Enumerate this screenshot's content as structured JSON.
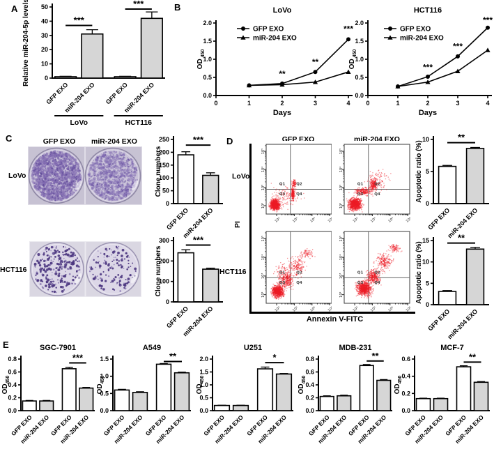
{
  "colors": {
    "bar_white": "#ffffff",
    "bar_gray": "#d6d6d6",
    "axis": "#000000",
    "flow_dots": "#ee1c24",
    "lovo_stain": "#7b64af",
    "hct_stain": "#4b3680"
  },
  "panels": {
    "a": "A",
    "b": "B",
    "c": "C",
    "d": "D",
    "e": "E"
  },
  "panel_c": {
    "col_titles": [
      "GFP EXO",
      "miR-204 EXO"
    ],
    "row_labels": [
      "LoVo",
      "HCT116"
    ]
  },
  "panel_d": {
    "col_titles": [
      "GFP EXO",
      "miR-204 EXO"
    ],
    "row_labels": [
      "LoVo",
      "HCT116"
    ],
    "y_axis_label": "PI",
    "x_axis_label": "Annexin V-FITC"
  },
  "plate_rows": [
    {
      "row": "LoVo",
      "bg": "#c7c2d3",
      "plate_fill": "#cac3d9",
      "rim": "#8e87a4",
      "plates": [
        {
          "condition": "GFP EXO",
          "colony_density": "high",
          "blobs": [
            [
              "#7b64af",
              1300,
              0.6,
              2.3,
              0.42
            ],
            [
              "#5d4897",
              260,
              0.5,
              1.4,
              0.55
            ]
          ]
        },
        {
          "condition": "miR-204 EXO",
          "colony_density": "medium",
          "blobs": [
            [
              "#7b64af",
              780,
              0.6,
              2.2,
              0.4
            ],
            [
              "#5d4897",
              170,
              0.5,
              1.3,
              0.5
            ]
          ]
        }
      ]
    },
    {
      "row": "HCT116",
      "bg": "#dad7e2",
      "plate_fill": "#dcd7e7",
      "rim": "#9992b0",
      "plates": [
        {
          "condition": "GFP EXO",
          "colony_density": "medium",
          "blobs": [
            [
              "#4b3680",
              155,
              0.9,
              2.1,
              0.9
            ],
            [
              "#7a68a8",
              70,
              0.7,
              1.5,
              0.7
            ]
          ]
        },
        {
          "condition": "miR-204 EXO",
          "colony_density": "low",
          "blobs": [
            [
              "#4b3680",
              95,
              0.9,
              2.0,
              0.9
            ],
            [
              "#7a68a8",
              45,
              0.7,
              1.4,
              0.7
            ]
          ]
        }
      ]
    }
  ],
  "chart_data": [
    {
      "id": "panel-a",
      "type": "bar",
      "ylabel": "Relative  miR-204-5p levels",
      "ylim": [
        0,
        50
      ],
      "yticks": [
        [
          0,
          "0"
        ],
        [
          10,
          "10"
        ],
        [
          20,
          "20"
        ],
        [
          30,
          "30"
        ],
        [
          40,
          "40"
        ],
        [
          50,
          "50"
        ]
      ],
      "categories": [
        "GFP EXO",
        "miR-204 EXO",
        "GFP EXO",
        "miR-204 EXO"
      ],
      "values": [
        1,
        31,
        1,
        42
      ],
      "errors": [
        0.3,
        3,
        0.3,
        4.5
      ],
      "fills": [
        "white",
        "gray",
        "white",
        "gray"
      ],
      "group_size": 2,
      "group_labels": [
        "LoVo",
        "HCT116"
      ],
      "sig": [
        {
          "from": 0,
          "to": 1,
          "label": "***",
          "y": 37
        },
        {
          "from": 2,
          "to": 3,
          "label": "***",
          "y": 48.5
        }
      ]
    },
    {
      "id": "panel-b-lovo",
      "type": "line",
      "title": "LoVo",
      "xlabel": "Days",
      "ylabel": "OD",
      "ylabel_sub": "450",
      "xlim": [
        0,
        4
      ],
      "xticks": [
        [
          0,
          "0"
        ],
        [
          1,
          "1"
        ],
        [
          2,
          "2"
        ],
        [
          3,
          "3"
        ],
        [
          4,
          "4"
        ]
      ],
      "ylim": [
        0,
        2
      ],
      "yticks": [
        [
          0,
          "0.0"
        ],
        [
          0.5,
          "0.5"
        ],
        [
          1,
          "1.0"
        ],
        [
          1.5,
          "1.5"
        ],
        [
          2,
          "2.0"
        ]
      ],
      "series": [
        {
          "name": "GFP EXO",
          "marker": "circle",
          "x": [
            1,
            2,
            3,
            4
          ],
          "y": [
            0.28,
            0.33,
            0.65,
            1.55
          ]
        },
        {
          "name": "miR-204 EXO",
          "marker": "triangle",
          "x": [
            1,
            2,
            3,
            4
          ],
          "y": [
            0.28,
            0.3,
            0.37,
            0.65
          ]
        }
      ],
      "annotations": [
        {
          "x": 2,
          "y": 0.52,
          "label": "**"
        },
        {
          "x": 3,
          "y": 0.85,
          "label": "**"
        },
        {
          "x": 4,
          "y": 1.76,
          "label": "***"
        }
      ]
    },
    {
      "id": "panel-b-hct116",
      "type": "line",
      "title": "HCT116",
      "xlabel": "Days",
      "ylabel": "OD",
      "ylabel_sub": "450",
      "xlim": [
        0,
        4
      ],
      "xticks": [
        [
          0,
          "0"
        ],
        [
          1,
          "1"
        ],
        [
          2,
          "2"
        ],
        [
          3,
          "3"
        ],
        [
          4,
          "4"
        ]
      ],
      "ylim": [
        0,
        2
      ],
      "yticks": [
        [
          0,
          "0.0"
        ],
        [
          0.5,
          "0.5"
        ],
        [
          1,
          "1.0"
        ],
        [
          1.5,
          "1.5"
        ],
        [
          2,
          "2.0"
        ]
      ],
      "series": [
        {
          "name": "GFP EXO",
          "marker": "circle",
          "x": [
            1,
            2,
            3,
            4
          ],
          "y": [
            0.25,
            0.52,
            1.08,
            1.87
          ]
        },
        {
          "name": "miR-204 EXO",
          "marker": "triangle",
          "x": [
            1,
            2,
            3,
            4
          ],
          "y": [
            0.25,
            0.37,
            0.67,
            1.25
          ]
        }
      ],
      "annotations": [
        {
          "x": 2,
          "y": 0.7,
          "label": "***"
        },
        {
          "x": 3,
          "y": 1.28,
          "label": "***"
        },
        {
          "x": 4,
          "y": 2.0,
          "label": "***"
        }
      ]
    },
    {
      "id": "panel-c-lovo",
      "type": "bar",
      "ylabel": "Clone numbers",
      "ylim": [
        0,
        250
      ],
      "yticks": [
        [
          0,
          "0"
        ],
        [
          50,
          "50"
        ],
        [
          100,
          "100"
        ],
        [
          150,
          "150"
        ],
        [
          200,
          "200"
        ],
        [
          250,
          "250"
        ]
      ],
      "categories": [
        "GFP EXO",
        "miR-204 EXO"
      ],
      "values": [
        190,
        110
      ],
      "errors": [
        12,
        10
      ],
      "fills": [
        "white",
        "gray"
      ],
      "sig": [
        {
          "from": 0,
          "to": 1,
          "label": "***",
          "y": 228
        }
      ]
    },
    {
      "id": "panel-c-hct116",
      "type": "bar",
      "ylabel": "Clone numbers",
      "ylim": [
        0,
        300
      ],
      "yticks": [
        [
          0,
          "0"
        ],
        [
          100,
          "100"
        ],
        [
          200,
          "200"
        ],
        [
          300,
          "300"
        ]
      ],
      "categories": [
        "GFP EXO",
        "miR-204 EXO"
      ],
      "values": [
        240,
        160
      ],
      "errors": [
        15,
        5
      ],
      "fills": [
        "white",
        "gray"
      ],
      "sig": [
        {
          "from": 0,
          "to": 1,
          "label": "***",
          "y": 278
        }
      ]
    },
    {
      "id": "panel-d-lovo",
      "type": "bar",
      "ylabel": "Apoptotic ratio (%)",
      "ylim": [
        0,
        10
      ],
      "yticks": [
        [
          0,
          "0"
        ],
        [
          5,
          "5"
        ],
        [
          10,
          "10"
        ]
      ],
      "categories": [
        "GFP EXO",
        "miR-204 EXO"
      ],
      "values": [
        5.8,
        8.6
      ],
      "errors": [
        0.15,
        0.15
      ],
      "fills": [
        "white",
        "gray"
      ],
      "sig": [
        {
          "from": 0,
          "to": 1,
          "label": "**",
          "y": 9.5
        }
      ]
    },
    {
      "id": "panel-d-hct116",
      "type": "bar",
      "ylabel": "Apoptotic ratio (%)",
      "ylim": [
        0,
        15
      ],
      "yticks": [
        [
          0,
          "0"
        ],
        [
          5,
          "5"
        ],
        [
          10,
          "10"
        ],
        [
          15,
          "15"
        ]
      ],
      "categories": [
        "GFP EXO",
        "miR-204 EXO"
      ],
      "values": [
        3.1,
        13
      ],
      "errors": [
        0.2,
        0.4
      ],
      "fills": [
        "white",
        "gray"
      ],
      "sig": [
        {
          "from": 0,
          "to": 1,
          "label": "**",
          "y": 14.4
        }
      ]
    },
    {
      "id": "panel-e-sgc",
      "type": "bar",
      "title": "SGC-7901",
      "ylabel": "OD",
      "ylabel_sub": "450",
      "ylim": [
        0,
        0.8
      ],
      "yticks": [
        [
          0,
          "0.0"
        ],
        [
          0.2,
          "0.2"
        ],
        [
          0.4,
          "0.4"
        ],
        [
          0.6,
          "0.6"
        ],
        [
          0.8,
          "0.8"
        ]
      ],
      "categories": [
        "GFP EXO",
        "miR-204 EXO",
        "GFP EXO",
        "miR-204 EXO"
      ],
      "values": [
        0.15,
        0.15,
        0.65,
        0.35
      ],
      "errors": [
        0.008,
        0.008,
        0.02,
        0.01
      ],
      "fills": [
        "white",
        "gray",
        "white",
        "gray"
      ],
      "group_size": 2,
      "sig": [
        {
          "from": 2,
          "to": 3,
          "label": "***",
          "y": 0.74
        }
      ]
    },
    {
      "id": "panel-e-a549",
      "type": "bar",
      "title": "A549",
      "ylabel": "OD",
      "ylabel_sub": "450",
      "ylim": [
        0,
        1.5
      ],
      "yticks": [
        [
          0,
          "0.0"
        ],
        [
          0.5,
          "0.5"
        ],
        [
          1,
          "1.0"
        ],
        [
          1.5,
          "1.5"
        ]
      ],
      "categories": [
        "GFP EXO",
        "miR-204 EXO",
        "GFP EXO",
        "miR-204 EXO"
      ],
      "values": [
        0.6,
        0.53,
        1.35,
        1.1
      ],
      "errors": [
        0.02,
        0.02,
        0.02,
        0.02
      ],
      "fills": [
        "white",
        "gray",
        "white",
        "gray"
      ],
      "group_size": 2,
      "sig": [
        {
          "from": 2,
          "to": 3,
          "label": "**",
          "y": 1.43
        }
      ]
    },
    {
      "id": "panel-e-u251",
      "type": "bar",
      "title": "U251",
      "ylabel": "OD",
      "ylabel_sub": "450",
      "ylim": [
        0,
        2
      ],
      "yticks": [
        [
          0,
          "0.0"
        ],
        [
          0.5,
          "0.5"
        ],
        [
          1,
          "1.0"
        ],
        [
          1.5,
          "1.5"
        ],
        [
          2,
          "2.0"
        ]
      ],
      "categories": [
        "GFP EXO",
        "miR-204 EXO",
        "GFP EXO",
        "miR-204 EXO"
      ],
      "values": [
        0.2,
        0.2,
        1.62,
        1.42
      ],
      "errors": [
        0.01,
        0.01,
        0.07,
        0.02
      ],
      "fills": [
        "white",
        "gray",
        "white",
        "gray"
      ],
      "group_size": 2,
      "sig": [
        {
          "from": 2,
          "to": 3,
          "label": "*",
          "y": 1.86
        }
      ]
    },
    {
      "id": "panel-e-mdb",
      "type": "bar",
      "title": "MDB-231",
      "ylabel": "OD",
      "ylabel_sub": "450",
      "ylim": [
        0,
        0.8
      ],
      "yticks": [
        [
          0,
          "0.0"
        ],
        [
          0.2,
          "0.2"
        ],
        [
          0.4,
          "0.4"
        ],
        [
          0.6,
          "0.6"
        ],
        [
          0.8,
          "0.8"
        ]
      ],
      "categories": [
        "GFP EXO",
        "miR-204 EXO",
        "GFP EXO",
        "miR-204 EXO"
      ],
      "values": [
        0.22,
        0.23,
        0.7,
        0.47
      ],
      "errors": [
        0.01,
        0.01,
        0.015,
        0.012
      ],
      "fills": [
        "white",
        "gray",
        "white",
        "gray"
      ],
      "group_size": 2,
      "sig": [
        {
          "from": 2,
          "to": 3,
          "label": "**",
          "y": 0.77
        }
      ]
    },
    {
      "id": "panel-e-mcf7",
      "type": "bar",
      "title": "MCF-7",
      "ylabel": "OD",
      "ylabel_sub": "450",
      "ylim": [
        0,
        0.6
      ],
      "yticks": [
        [
          0,
          "0.0"
        ],
        [
          0.2,
          "0.2"
        ],
        [
          0.4,
          "0.4"
        ],
        [
          0.6,
          "0.6"
        ]
      ],
      "categories": [
        "GFP EXO",
        "miR-204 EXO",
        "GFP EXO",
        "miR-204 EXO"
      ],
      "values": [
        0.14,
        0.14,
        0.51,
        0.33
      ],
      "errors": [
        0.005,
        0.005,
        0.012,
        0.008
      ],
      "fills": [
        "white",
        "gray",
        "white",
        "gray"
      ],
      "group_size": 2,
      "sig": [
        {
          "from": 2,
          "to": 3,
          "label": "**",
          "y": 0.565
        }
      ]
    },
    {
      "id": "flow-lovo-gfp",
      "type": "scatter",
      "cell_line": "LoVo",
      "condition": "GFP EXO",
      "xlabel": "Annexin V-FITC",
      "ylabel": "PI",
      "tick_labels": [
        "10²",
        "10³",
        "10⁴",
        "10⁵"
      ],
      "quadrant_labels": [
        "Q1",
        "Q2",
        "Q3",
        "Q4"
      ],
      "clusters": [
        [
          0.13,
          0.14,
          0.07,
          0.07,
          900
        ],
        [
          0.4,
          0.3,
          0.022,
          0.09,
          220
        ],
        [
          0.42,
          0.44,
          0.035,
          0.05,
          80
        ],
        [
          0.3,
          0.28,
          0.22,
          0.16,
          130
        ]
      ]
    },
    {
      "id": "flow-lovo-mir",
      "type": "scatter",
      "cell_line": "LoVo",
      "condition": "miR-204 EXO",
      "xlabel": "Annexin V-FITC",
      "ylabel": "PI",
      "tick_labels": [
        "10²",
        "10³",
        "10⁴",
        "10⁵"
      ],
      "quadrant_labels": [
        "Q1",
        "Q2",
        "Q3",
        "Q4"
      ],
      "clusters": [
        [
          0.16,
          0.15,
          0.09,
          0.08,
          950
        ],
        [
          0.28,
          0.33,
          0.13,
          0.05,
          260
        ],
        [
          0.44,
          0.42,
          0.05,
          0.07,
          220
        ],
        [
          0.52,
          0.5,
          0.16,
          0.12,
          110
        ]
      ]
    },
    {
      "id": "flow-hct116-gfp",
      "type": "scatter",
      "cell_line": "HCT116",
      "condition": "GFP EXO",
      "xlabel": "Annexin V-FITC",
      "ylabel": "PI",
      "tick_labels": [
        "10²",
        "10³",
        "10⁴",
        "10⁵"
      ],
      "quadrant_labels": [
        "Q1",
        "Q2",
        "Q3",
        "Q4"
      ],
      "clusters": [
        [
          0.17,
          0.17,
          0.08,
          0.08,
          850
        ],
        [
          0.3,
          0.33,
          0.1,
          0.1,
          300
        ],
        [
          0.47,
          0.52,
          0.13,
          0.13,
          180
        ],
        [
          0.62,
          0.7,
          0.1,
          0.06,
          70
        ],
        [
          0.25,
          0.45,
          0.15,
          0.15,
          80
        ]
      ]
    },
    {
      "id": "flow-hct116-mir",
      "type": "scatter",
      "cell_line": "HCT116",
      "condition": "miR-204 EXO",
      "xlabel": "Annexin V-FITC",
      "ylabel": "PI",
      "tick_labels": [
        "10²",
        "10³",
        "10⁴",
        "10⁵"
      ],
      "quadrant_labels": [
        "Q1",
        "Q2",
        "Q3",
        "Q4"
      ],
      "clusters": [
        [
          0.3,
          0.21,
          0.1,
          0.09,
          850
        ],
        [
          0.44,
          0.38,
          0.1,
          0.1,
          350
        ],
        [
          0.6,
          0.58,
          0.12,
          0.11,
          220
        ],
        [
          0.77,
          0.77,
          0.08,
          0.05,
          90
        ]
      ]
    }
  ]
}
